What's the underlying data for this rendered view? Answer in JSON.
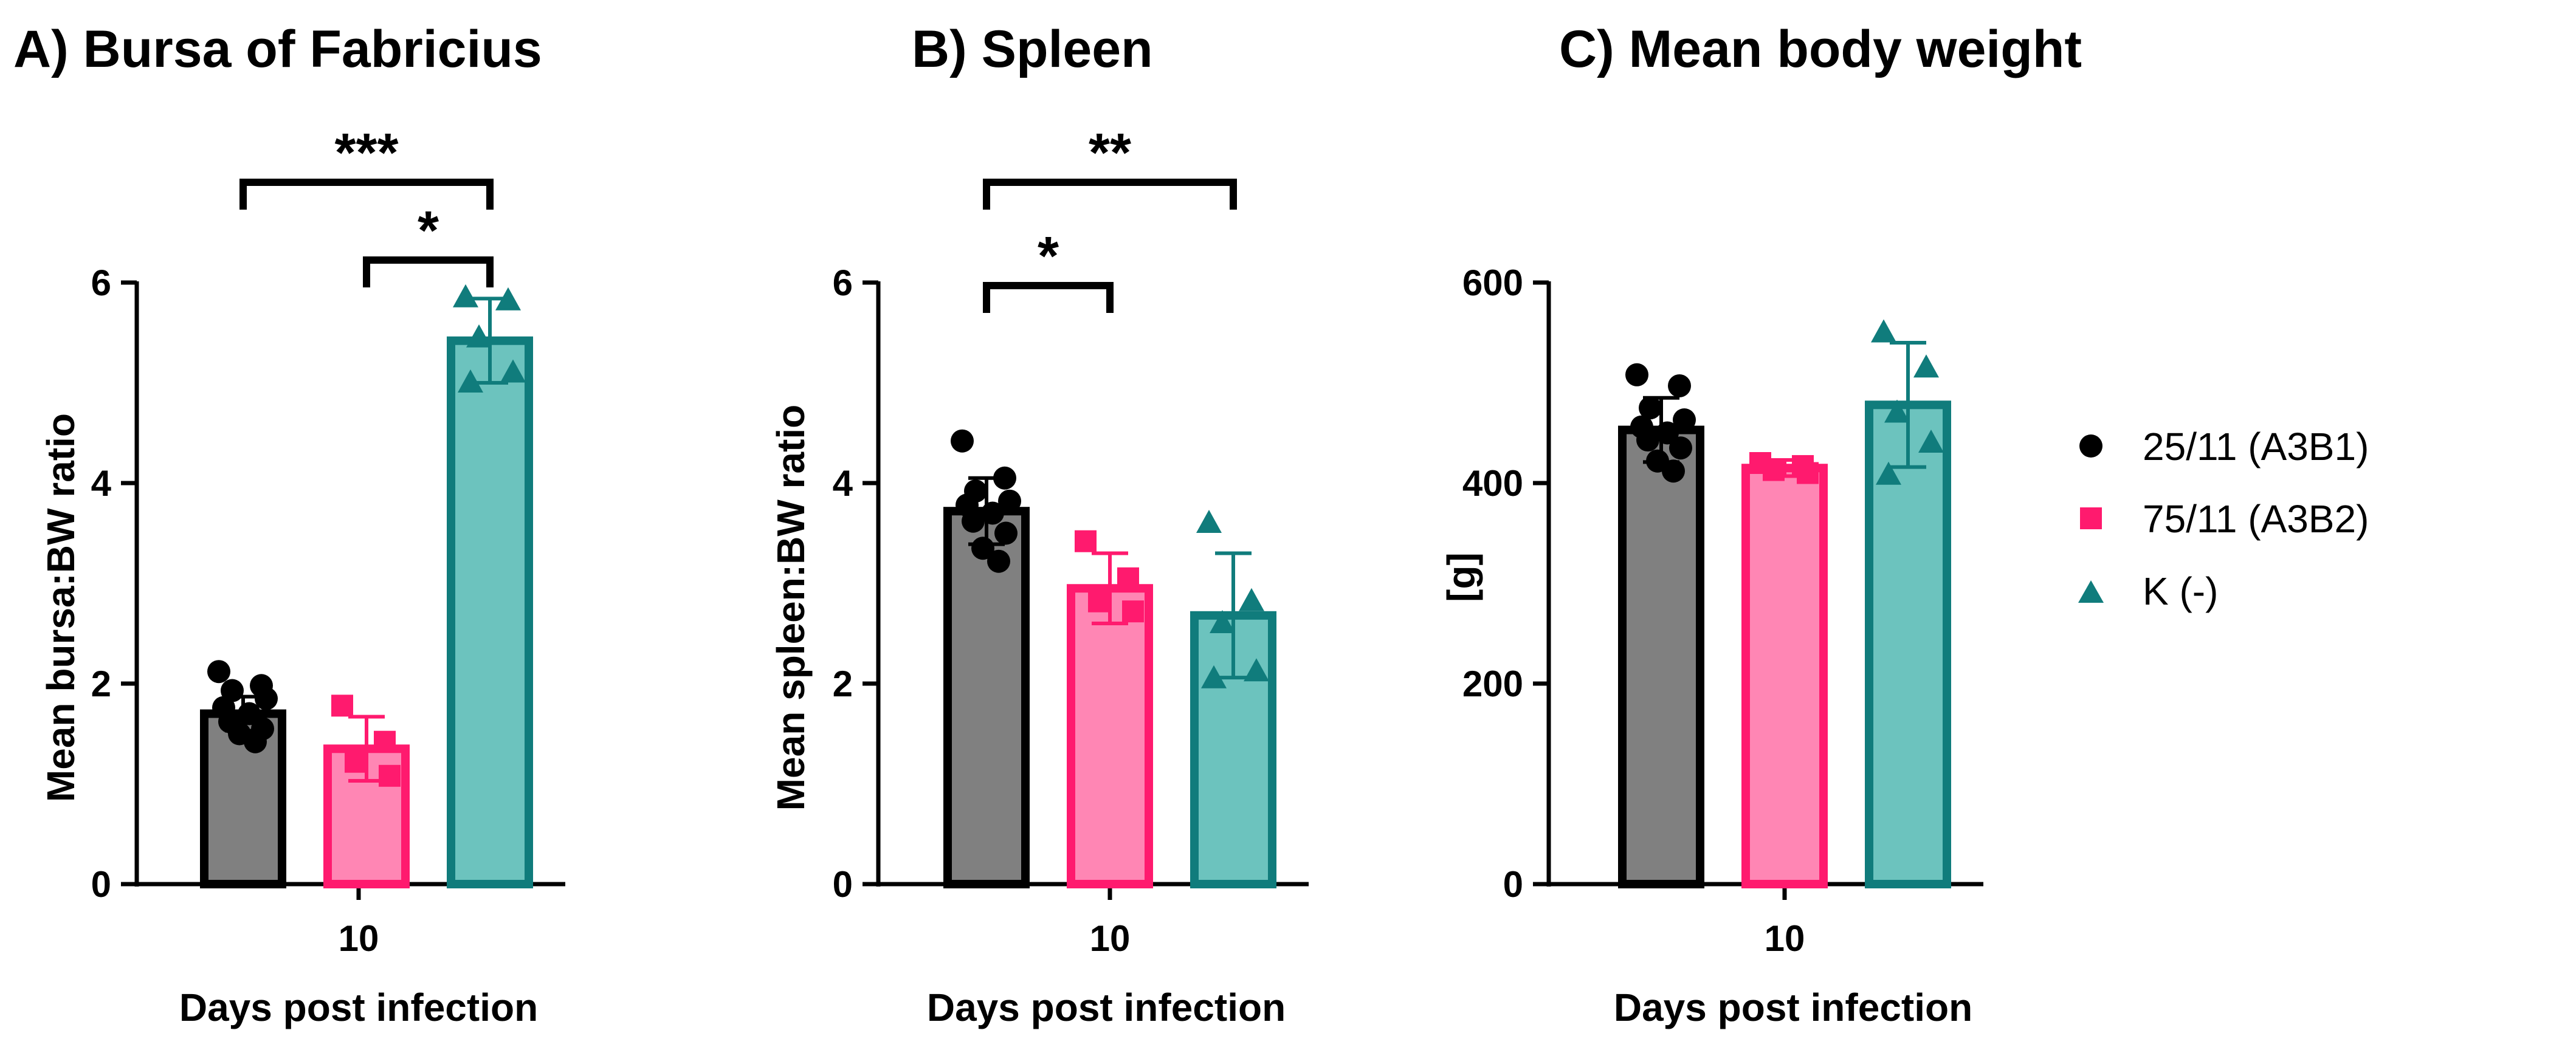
{
  "legend": [
    {
      "label": "25/11 (A3B1)",
      "marker": "circle",
      "color": "#000000",
      "fill": "#808080",
      "edge": "#000000"
    },
    {
      "label": "75/11 (A3B2)",
      "marker": "square",
      "color": "#ff1a6e",
      "fill": "#ff86b4",
      "edge": "#ff1a6e"
    },
    {
      "label": "K (-)",
      "marker": "triangle",
      "color": "#107c7c",
      "fill": "#6cc3be",
      "edge": "#107c7c"
    }
  ],
  "chart_data": [
    {
      "type": "bar",
      "title": "A) Bursa of Fabricius",
      "xlabel": "Days post infection",
      "ylabel": "Mean bursa:BW ratio",
      "categories": [
        "10"
      ],
      "ylim": [
        0,
        6
      ],
      "yticks": [
        0,
        2,
        4,
        6
      ],
      "series": [
        {
          "name": "25/11 (A3B1)",
          "values": [
            1.7
          ],
          "error": [
            0.17
          ],
          "points": [
            2.12,
            1.98,
            1.93,
            1.85,
            1.76,
            1.7,
            1.62,
            1.55,
            1.5,
            1.42
          ]
        },
        {
          "name": "75/11 (A3B2)",
          "values": [
            1.35
          ],
          "error": [
            0.32
          ],
          "points": [
            1.78,
            1.42,
            1.22,
            1.08
          ]
        },
        {
          "name": "K (-)",
          "values": [
            5.42
          ],
          "error": [
            0.42
          ],
          "points": [
            5.85,
            5.82,
            5.45,
            5.1,
            5.0
          ]
        }
      ],
      "significance": [
        {
          "from": 0,
          "to": 2,
          "label": "***"
        },
        {
          "from": 1,
          "to": 2,
          "label": "*"
        }
      ]
    },
    {
      "type": "bar",
      "title": "B) Spleen",
      "xlabel": "Days post infection",
      "ylabel": "Mean spleen:BW ratio",
      "categories": [
        "10"
      ],
      "ylim": [
        0,
        6
      ],
      "yticks": [
        0,
        2,
        4,
        6
      ],
      "series": [
        {
          "name": "25/11 (A3B1)",
          "values": [
            3.72
          ],
          "error": [
            0.33
          ],
          "points": [
            4.42,
            4.05,
            3.92,
            3.82,
            3.78,
            3.7,
            3.62,
            3.5,
            3.35,
            3.22
          ]
        },
        {
          "name": "75/11 (A3B2)",
          "values": [
            2.95
          ],
          "error": [
            0.35
          ],
          "points": [
            3.42,
            3.05,
            2.82,
            2.72
          ]
        },
        {
          "name": "K (-)",
          "values": [
            2.68
          ],
          "error": [
            0.62
          ],
          "points": [
            3.6,
            2.82,
            2.6,
            2.12,
            2.05
          ]
        }
      ],
      "significance": [
        {
          "from": 0,
          "to": 2,
          "label": "**"
        },
        {
          "from": 0,
          "to": 1,
          "label": "*"
        }
      ]
    },
    {
      "type": "bar",
      "title": "C) Mean body weight",
      "xlabel": "Days post infection",
      "ylabel": "[g]",
      "categories": [
        "10"
      ],
      "ylim": [
        0,
        600
      ],
      "yticks": [
        0,
        200,
        400,
        600
      ],
      "series": [
        {
          "name": "25/11 (A3B1)",
          "values": [
            453
          ],
          "error": [
            32
          ],
          "points": [
            508,
            497,
            475,
            463,
            456,
            450,
            443,
            435,
            422,
            412
          ]
        },
        {
          "name": "75/11 (A3B2)",
          "values": [
            415
          ],
          "error": [
            8
          ],
          "points": [
            420,
            417,
            413,
            410
          ]
        },
        {
          "name": "K (-)",
          "values": [
            478
          ],
          "error": [
            62
          ],
          "points": [
            550,
            515,
            470,
            440,
            408
          ]
        }
      ],
      "significance": []
    }
  ]
}
